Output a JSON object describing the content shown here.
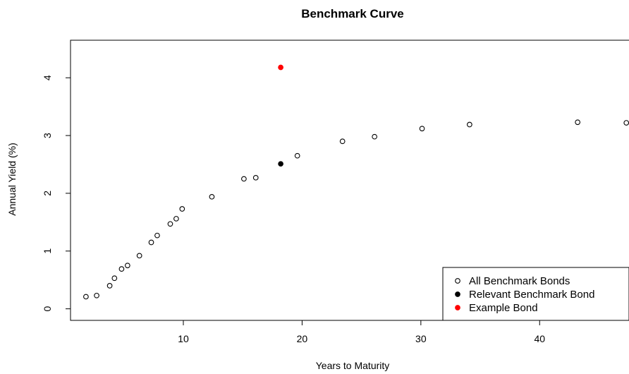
{
  "chart_data": {
    "type": "scatter",
    "title": "Benchmark Curve",
    "xlabel": "Years to Maturity",
    "ylabel": "Annual Yield (%)",
    "xlim": [
      0.5,
      48
    ],
    "ylim": [
      -0.2,
      4.65
    ],
    "x_ticks": [
      10,
      20,
      30,
      40
    ],
    "y_ticks": [
      0,
      1,
      2,
      3,
      4
    ],
    "grid": false,
    "legend_position": "bottom-right",
    "series": [
      {
        "name": "All Benchmark Bonds",
        "marker": "open-circle",
        "color": "#000000",
        "x": [
          1.8,
          2.7,
          3.8,
          4.2,
          4.8,
          5.3,
          6.3,
          7.3,
          7.8,
          8.9,
          9.4,
          9.9,
          12.4,
          15.1,
          16.1,
          19.6,
          23.4,
          26.1,
          30.1,
          34.1,
          43.2,
          47.3
        ],
        "y": [
          0.21,
          0.23,
          0.4,
          0.53,
          0.69,
          0.75,
          0.92,
          1.15,
          1.27,
          1.47,
          1.56,
          1.73,
          1.94,
          2.25,
          2.27,
          2.65,
          2.9,
          2.98,
          3.12,
          3.19,
          3.23,
          3.22
        ]
      },
      {
        "name": "Relevant Benchmark Bond",
        "marker": "filled-circle",
        "color": "#000000",
        "x": [
          18.2
        ],
        "y": [
          2.51
        ]
      },
      {
        "name": "Example Bond",
        "marker": "filled-circle",
        "color": "#ff0000",
        "x": [
          18.2
        ],
        "y": [
          4.18
        ]
      }
    ]
  }
}
